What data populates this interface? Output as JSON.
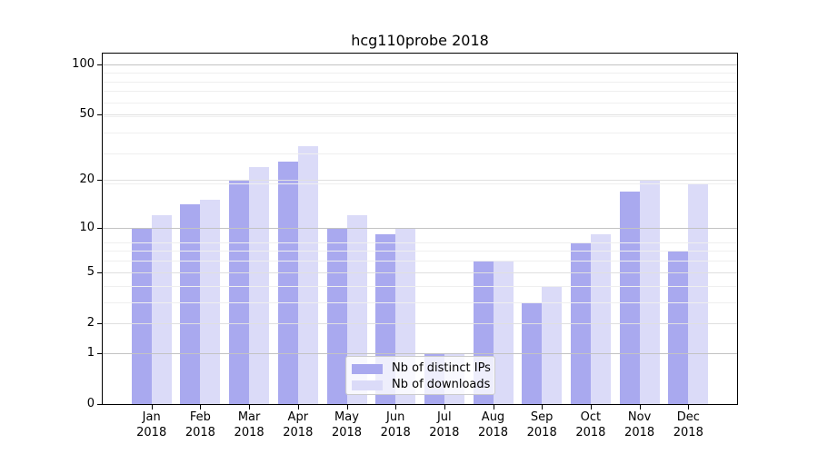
{
  "chart_data": {
    "type": "bar",
    "title": "hcg110probe 2018",
    "categories": [
      "Jan",
      "Feb",
      "Mar",
      "Apr",
      "May",
      "Jun",
      "Jul",
      "Aug",
      "Sep",
      "Oct",
      "Nov",
      "Dec"
    ],
    "category_year": "2018",
    "series": [
      {
        "name": "Nb of distinct IPs",
        "color": "#a9a9ef",
        "values": [
          10,
          14,
          20,
          26,
          10,
          9,
          1,
          6,
          3,
          8,
          17,
          7
        ]
      },
      {
        "name": "Nb of downloads",
        "color": "#dbdbf8",
        "values": [
          12,
          15,
          24,
          32,
          12,
          10,
          1,
          6,
          4,
          9,
          20,
          19
        ]
      }
    ],
    "y_axis": {
      "scale": "log10(value+1)",
      "tick_labels": [
        100,
        50,
        20,
        10,
        5,
        2,
        1,
        0
      ],
      "strong_grid_values": [
        1,
        10,
        100
      ],
      "mid_grid_values": [
        2,
        5,
        20,
        50
      ],
      "minor_grid_values_plus1": [
        4,
        5,
        7,
        8,
        9,
        20,
        30,
        40,
        50,
        60,
        70,
        80,
        90
      ],
      "ylim_top_value": 115
    },
    "legend": {
      "position": "lower center"
    },
    "grid": true,
    "colors": {
      "axis": "#000000",
      "strong_grid": "#c3c3c3",
      "mid_grid": "#e0e0e0",
      "minor_grid": "#efefef"
    }
  }
}
